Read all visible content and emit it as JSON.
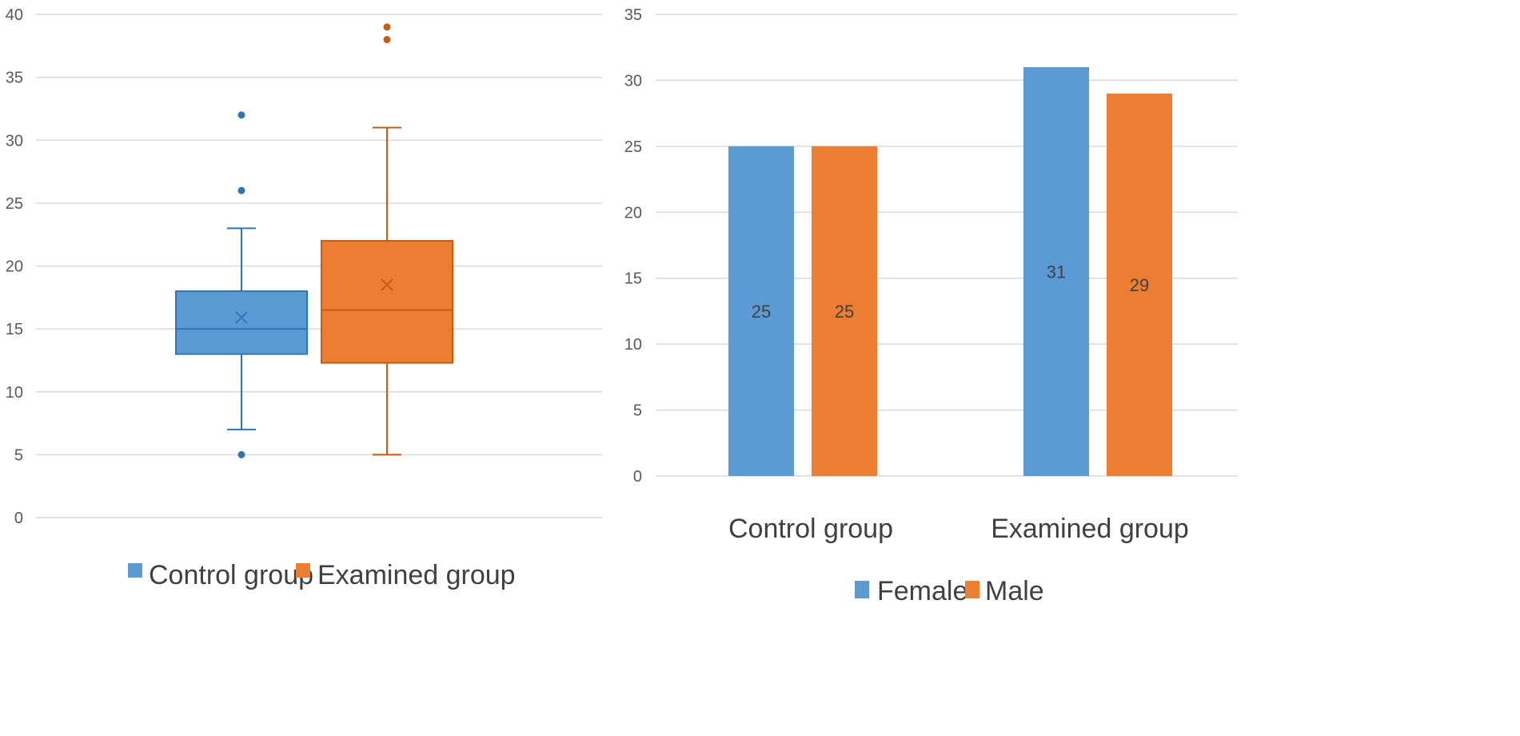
{
  "colors": {
    "blue": "#5B9BD5",
    "orange": "#ED7D31",
    "blue_stroke": "#2E75B6",
    "orange_stroke": "#C55A11"
  },
  "chart_data": [
    {
      "type": "boxplot",
      "ylim": [
        0,
        40
      ],
      "yticks": [
        "0",
        "5",
        "10",
        "15",
        "20",
        "25",
        "30",
        "35",
        "40"
      ],
      "legend_position": "bottom",
      "series": [
        {
          "name": "Control group",
          "min": 7,
          "q1": 13,
          "median": 15,
          "q3": 18,
          "max": 23,
          "mean": 15.9,
          "outliers": [
            5,
            26,
            32
          ]
        },
        {
          "name": "Examined group",
          "min": 5,
          "q1": 12.3,
          "median": 16.5,
          "q3": 22,
          "max": 31,
          "mean": 18.5,
          "outliers": [
            38,
            39
          ]
        }
      ]
    },
    {
      "type": "bar",
      "ylim": [
        0,
        35
      ],
      "yticks": [
        "0",
        "5",
        "10",
        "15",
        "20",
        "25",
        "30",
        "35"
      ],
      "categories": [
        "Control group",
        "Examined group"
      ],
      "legend_position": "bottom",
      "series": [
        {
          "name": "Female",
          "values": [
            25,
            31
          ],
          "labels": [
            "25",
            "31"
          ]
        },
        {
          "name": "Male",
          "values": [
            25,
            29
          ],
          "labels": [
            "25",
            "29"
          ]
        }
      ]
    }
  ]
}
